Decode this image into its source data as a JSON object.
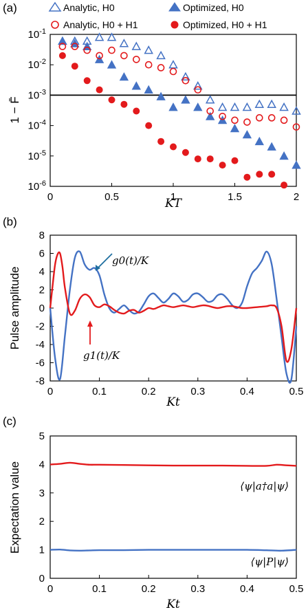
{
  "chart_data": [
    {
      "panel": "(a)",
      "type": "scatter",
      "xlabel": "KT",
      "ylabel": "1 − F̄",
      "xlim": [
        0,
        2
      ],
      "ylim": [
        1e-06,
        0.1
      ],
      "yscale": "log",
      "x_ticks": [
        "0",
        "0.5",
        "1",
        "1.5",
        "2"
      ],
      "y_ticks": [
        "10-6",
        "10-5",
        "10-4",
        "10-3",
        "10-2",
        "10-1"
      ],
      "threshold": 0.001,
      "legend_location": "top",
      "series": [
        {
          "name": "Analytic, H0",
          "marker": "open-triangle",
          "color": "#4472c4",
          "x": [
            0.1,
            0.2,
            0.3,
            0.4,
            0.5,
            0.6,
            0.7,
            0.8,
            0.9,
            1.0,
            1.1,
            1.2,
            1.3,
            1.4,
            1.5,
            1.6,
            1.7,
            1.8,
            1.9,
            2.0
          ],
          "y": [
            0.06,
            0.06,
            0.06,
            0.08,
            0.08,
            0.05,
            0.04,
            0.03,
            0.02,
            0.01,
            0.004,
            0.002,
            0.0007,
            0.0004,
            0.0004,
            0.0004,
            0.0005,
            0.0005,
            0.0004,
            0.0003
          ]
        },
        {
          "name": "Optimized, H0",
          "marker": "filled-triangle",
          "color": "#4472c4",
          "x": [
            0.1,
            0.2,
            0.3,
            0.4,
            0.5,
            0.6,
            0.7,
            0.8,
            0.9,
            1.0,
            1.1,
            1.2,
            1.3,
            1.4,
            1.5,
            1.6,
            1.7,
            1.8,
            1.9,
            2.0
          ],
          "y": [
            0.06,
            0.05,
            0.04,
            0.015,
            0.01,
            0.004,
            0.002,
            0.0015,
            0.0009,
            0.0004,
            0.0007,
            0.0004,
            0.0002,
            0.00015,
            8e-05,
            5e-05,
            3e-05,
            2e-05,
            1e-05,
            5e-06
          ]
        },
        {
          "name": "Analytic, H0 + H1",
          "marker": "open-circle",
          "color": "#e31a1c",
          "x": [
            0.1,
            0.2,
            0.3,
            0.4,
            0.5,
            0.6,
            0.7,
            0.8,
            0.9,
            1.0,
            1.1,
            1.2,
            1.3,
            1.4,
            1.5,
            1.6,
            1.7,
            1.8,
            1.9,
            2.0
          ],
          "y": [
            0.04,
            0.04,
            0.03,
            0.02,
            0.03,
            0.02,
            0.015,
            0.01,
            0.008,
            0.006,
            0.003,
            0.0015,
            0.0003,
            0.0002,
            0.00015,
            0.00013,
            0.00018,
            0.00018,
            0.00015,
            9e-05
          ]
        },
        {
          "name": "Optimized, H0 + H1",
          "marker": "filled-circle",
          "color": "#e31a1c",
          "x": [
            0.1,
            0.2,
            0.3,
            0.4,
            0.5,
            0.6,
            0.7,
            0.8,
            0.9,
            1.0,
            1.1,
            1.2,
            1.3,
            1.4,
            1.5,
            1.6,
            1.7,
            1.8,
            1.9
          ],
          "y": [
            0.02,
            0.009,
            0.003,
            0.0015,
            0.0007,
            0.0005,
            0.0003,
            0.0001,
            3e-05,
            2e-05,
            1.3e-05,
            8e-06,
            8e-06,
            5e-06,
            7e-06,
            2e-06,
            2.5e-06,
            2.5e-06,
            1.1e-06
          ]
        }
      ]
    },
    {
      "panel": "(b)",
      "type": "line",
      "xlabel": "Kt",
      "ylabel": "Pulse amplitude",
      "xlim": [
        0,
        0.5
      ],
      "ylim": [
        -8,
        8
      ],
      "x_ticks": [
        "0",
        "0.1",
        "0.2",
        "0.3",
        "0.4",
        "0.5"
      ],
      "y_ticks": [
        "-8",
        "-6",
        "-4",
        "-2",
        "0",
        "2",
        "4",
        "6",
        "8"
      ],
      "series": [
        {
          "name": "g0(t)/K",
          "color": "#4472c4",
          "x": [
            0,
            0.01,
            0.02,
            0.03,
            0.04,
            0.05,
            0.06,
            0.07,
            0.08,
            0.09,
            0.1,
            0.11,
            0.12,
            0.13,
            0.14,
            0.15,
            0.16,
            0.17,
            0.18,
            0.19,
            0.2,
            0.21,
            0.22,
            0.23,
            0.24,
            0.25,
            0.26,
            0.27,
            0.28,
            0.29,
            0.3,
            0.31,
            0.32,
            0.33,
            0.34,
            0.35,
            0.36,
            0.37,
            0.38,
            0.39,
            0.4,
            0.41,
            0.42,
            0.43,
            0.44,
            0.45,
            0.46,
            0.47,
            0.48,
            0.49,
            0.5
          ],
          "y": [
            0,
            -5.5,
            -7.8,
            -3,
            2,
            5.5,
            6.2,
            4.8,
            4.2,
            4.4,
            3.6,
            1.5,
            0,
            -0.5,
            -0.1,
            0.3,
            -0.2,
            -0.6,
            -0.4,
            0.4,
            1.3,
            1.6,
            1.1,
            0.6,
            1.0,
            1.6,
            1.3,
            0.7,
            0.9,
            1.5,
            1.6,
            1.2,
            0.7,
            0.8,
            1.4,
            1.5,
            1.0,
            0.3,
            0,
            0.6,
            2.4,
            3.8,
            4.4,
            5.2,
            6.2,
            4.8,
            1.0,
            -3.2,
            -7.2,
            -7.8,
            -2.0
          ]
        },
        {
          "name": "g1(t)/K",
          "color": "#e31a1c",
          "x": [
            0,
            0.005,
            0.01,
            0.015,
            0.02,
            0.025,
            0.03,
            0.04,
            0.05,
            0.06,
            0.07,
            0.08,
            0.09,
            0.1,
            0.11,
            0.12,
            0.13,
            0.14,
            0.15,
            0.16,
            0.17,
            0.18,
            0.19,
            0.2,
            0.21,
            0.22,
            0.23,
            0.24,
            0.25,
            0.26,
            0.27,
            0.28,
            0.29,
            0.3,
            0.31,
            0.32,
            0.33,
            0.34,
            0.35,
            0.36,
            0.37,
            0.38,
            0.39,
            0.4,
            0.41,
            0.42,
            0.43,
            0.44,
            0.45,
            0.46,
            0.47,
            0.48,
            0.49,
            0.5
          ],
          "y": [
            0,
            2.5,
            4.8,
            5.9,
            6.0,
            4.5,
            2.2,
            -0.6,
            -0.3,
            1.0,
            1.5,
            1.2,
            0.3,
            0.1,
            0.4,
            0.2,
            -0.2,
            -0.5,
            -0.6,
            -0.3,
            -0.2,
            -0.5,
            -0.3,
            0.0,
            -0.1,
            0.1,
            0.3,
            0.2,
            0.1,
            0.2,
            0.3,
            0.2,
            0.1,
            0.2,
            0.3,
            0.25,
            0.1,
            0.0,
            0.1,
            0.2,
            0.2,
            0.1,
            0.0,
            0.0,
            0.05,
            0.1,
            0.15,
            0.2,
            0.3,
            0.0,
            -2.0,
            -5.8,
            -4.5,
            0.0
          ]
        }
      ],
      "annotations": [
        {
          "text": "g0(t)/K",
          "color": "#1f6fa0"
        },
        {
          "text": "g1(t)/K",
          "color": "#e31a1c"
        }
      ]
    },
    {
      "panel": "(c)",
      "type": "line",
      "xlabel": "Kt",
      "ylabel": "Expectation value",
      "xlim": [
        0,
        0.5
      ],
      "ylim": [
        0,
        5
      ],
      "x_ticks": [
        "0",
        "0.1",
        "0.2",
        "0.3",
        "0.4",
        "0.5"
      ],
      "y_ticks": [
        "0",
        "1",
        "2",
        "3",
        "4",
        "5"
      ],
      "series": [
        {
          "name": "⟨ψ|a†a|ψ⟩",
          "color": "#e31a1c",
          "x": [
            0,
            0.02,
            0.04,
            0.06,
            0.08,
            0.1,
            0.15,
            0.2,
            0.25,
            0.3,
            0.35,
            0.4,
            0.44,
            0.46,
            0.48,
            0.5
          ],
          "y": [
            4.0,
            4.02,
            4.06,
            4.02,
            3.99,
            3.99,
            3.98,
            3.97,
            3.96,
            3.96,
            3.96,
            3.95,
            3.95,
            3.99,
            3.97,
            3.95
          ]
        },
        {
          "name": "⟨ψ|P|ψ⟩",
          "color": "#4472c4",
          "x": [
            0,
            0.02,
            0.04,
            0.06,
            0.08,
            0.1,
            0.15,
            0.2,
            0.25,
            0.3,
            0.35,
            0.4,
            0.45,
            0.47,
            0.5
          ],
          "y": [
            1.0,
            1.01,
            0.98,
            0.97,
            0.98,
            0.99,
            0.99,
            1.0,
            1.0,
            1.0,
            1.0,
            1.0,
            0.98,
            0.97,
            1.0
          ]
        }
      ],
      "annotations": [
        {
          "text": "⟨ψ|a†a|ψ⟩"
        },
        {
          "text": "⟨ψ|P|ψ⟩"
        }
      ]
    }
  ]
}
